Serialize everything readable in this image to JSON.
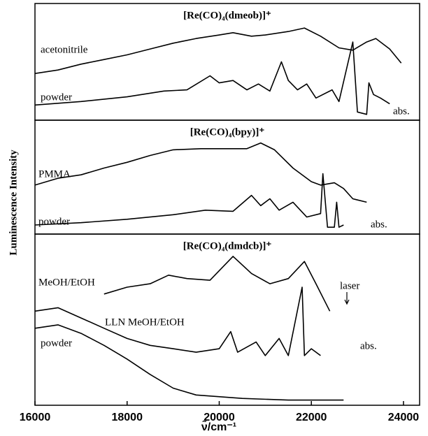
{
  "axis_labels": {
    "y": "Luminescence Intensity",
    "x": "ν̃/cm⁻¹"
  },
  "chart_data": [
    {
      "type": "line",
      "title": "[Re(CO)₄(dmeob)]⁺",
      "xlim": [
        16000,
        24350
      ],
      "ylim": [
        0,
        1
      ],
      "annotations": [
        "abs."
      ],
      "series": [
        {
          "name": "acetonitrile",
          "color": "#000000",
          "x": [
            16000,
            16500,
            17000,
            17500,
            18000,
            18500,
            19000,
            19500,
            20000,
            20300,
            20700,
            21000,
            21500,
            21850,
            22200,
            22600,
            22900,
            23200,
            23400,
            23700,
            23950
          ],
          "values": [
            0.4,
            0.43,
            0.48,
            0.52,
            0.56,
            0.61,
            0.66,
            0.7,
            0.73,
            0.75,
            0.72,
            0.73,
            0.76,
            0.79,
            0.72,
            0.62,
            0.6,
            0.67,
            0.7,
            0.61,
            0.49
          ]
        },
        {
          "name": "powder",
          "color": "#000000",
          "x": [
            16000,
            17000,
            18000,
            18800,
            19300,
            19800,
            20000,
            20300,
            20600,
            20850,
            21100,
            21350,
            21500,
            21700,
            21900,
            22100,
            22450,
            22600,
            22900,
            23000,
            23200,
            23250,
            23350,
            23500,
            23700
          ],
          "values": [
            0.13,
            0.16,
            0.2,
            0.25,
            0.26,
            0.38,
            0.32,
            0.34,
            0.26,
            0.31,
            0.25,
            0.5,
            0.34,
            0.26,
            0.31,
            0.19,
            0.26,
            0.16,
            0.67,
            0.07,
            0.05,
            0.32,
            0.22,
            0.19,
            0.14
          ]
        }
      ]
    },
    {
      "type": "line",
      "title": "[Re(CO)₄(bpy)]⁺",
      "xlim": [
        16000,
        24350
      ],
      "ylim": [
        0,
        1
      ],
      "annotations": [
        "abs."
      ],
      "series": [
        {
          "name": "PMMA",
          "color": "#000000",
          "x": [
            16000,
            16500,
            17000,
            17500,
            18000,
            18500,
            19000,
            19600,
            20200,
            20600,
            20900,
            21200,
            21600,
            22000,
            22200,
            22500,
            22700,
            22900,
            23200
          ],
          "values": [
            0.43,
            0.49,
            0.52,
            0.58,
            0.63,
            0.69,
            0.74,
            0.75,
            0.75,
            0.75,
            0.8,
            0.74,
            0.58,
            0.46,
            0.43,
            0.45,
            0.4,
            0.31,
            0.28
          ]
        },
        {
          "name": "powder",
          "color": "#000000",
          "x": [
            16000,
            17000,
            18000,
            19000,
            19700,
            20300,
            20700,
            20900,
            21100,
            21300,
            21600,
            21900,
            22200,
            22250,
            22350,
            22500,
            22550,
            22600,
            22700
          ],
          "values": [
            0.08,
            0.1,
            0.13,
            0.17,
            0.21,
            0.2,
            0.34,
            0.25,
            0.31,
            0.21,
            0.28,
            0.15,
            0.18,
            0.53,
            0.06,
            0.06,
            0.28,
            0.06,
            0.08
          ]
        }
      ]
    },
    {
      "type": "line",
      "title": "[Re(CO)₄(dmdcb)]⁺",
      "xlim": [
        16000,
        24350
      ],
      "ylim": [
        0,
        1
      ],
      "xticks": [
        16000,
        18000,
        20000,
        22000,
        24000
      ],
      "annotations": [
        "laser",
        "abs."
      ],
      "series": [
        {
          "name": "MeOH/EtOH",
          "color": "#000000",
          "x": [
            17500,
            18000,
            18500,
            18900,
            19300,
            19800,
            20300,
            20700,
            21100,
            21500,
            21850,
            22100,
            22400
          ],
          "values": [
            0.65,
            0.69,
            0.71,
            0.76,
            0.74,
            0.73,
            0.87,
            0.77,
            0.71,
            0.74,
            0.84,
            0.71,
            0.55
          ]
        },
        {
          "name": "LLN MeOH/EtOH",
          "color": "#000000",
          "x": [
            16000,
            16500,
            17000,
            17500,
            18000,
            18500,
            19000,
            19500,
            20000,
            20250,
            20400,
            20800,
            21000,
            21300,
            21500,
            21800,
            21850,
            22000,
            22200
          ],
          "values": [
            0.55,
            0.57,
            0.51,
            0.45,
            0.39,
            0.35,
            0.33,
            0.31,
            0.33,
            0.43,
            0.31,
            0.37,
            0.29,
            0.39,
            0.29,
            0.69,
            0.29,
            0.33,
            0.29
          ]
        },
        {
          "name": "powder",
          "color": "#000000",
          "x": [
            16000,
            16500,
            17000,
            17500,
            18000,
            18500,
            19000,
            19500,
            20500,
            21500,
            22700
          ],
          "values": [
            0.45,
            0.47,
            0.42,
            0.35,
            0.27,
            0.18,
            0.1,
            0.06,
            0.04,
            0.03,
            0.03
          ]
        }
      ]
    }
  ]
}
